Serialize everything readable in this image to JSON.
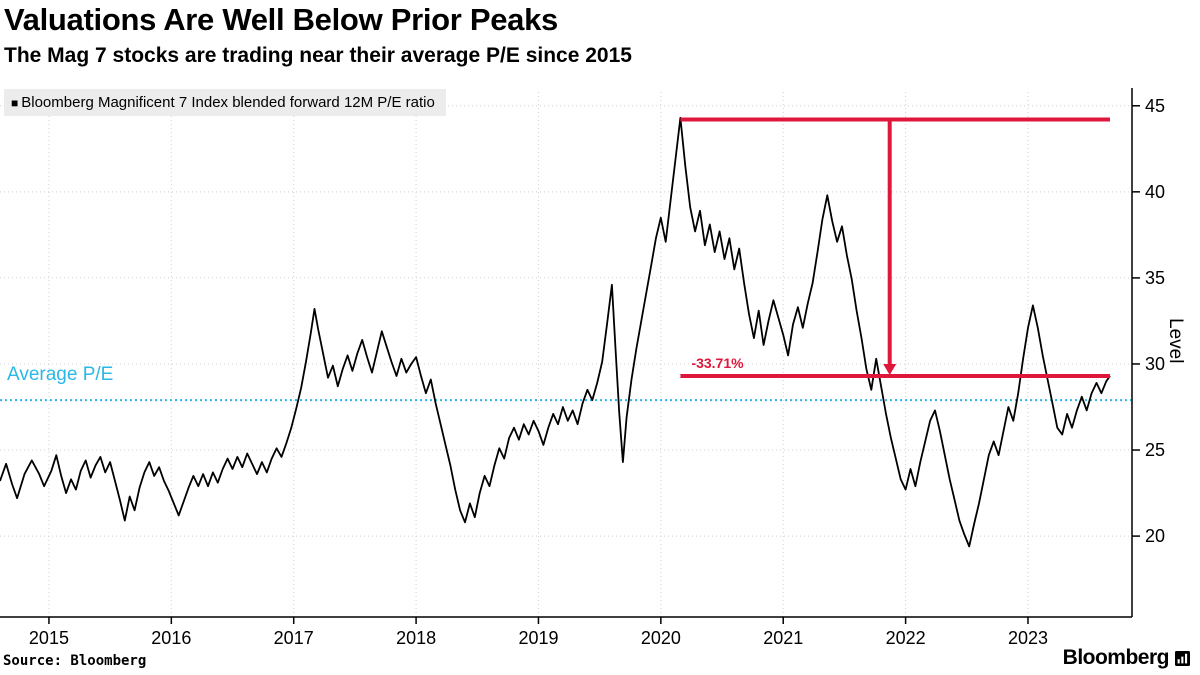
{
  "header": {
    "title": "Valuations Are Well Below Prior Peaks",
    "subtitle": "The Mag 7 stocks are trading near their average P/E since 2015"
  },
  "legend": {
    "swatch": "■",
    "label": "Bloomberg Magnificent 7 Index blended forward 12M P/E ratio"
  },
  "footer": {
    "source": "Source: Bloomberg",
    "brand": "Bloomberg"
  },
  "colors": {
    "series": "#000000",
    "average": "#2bb8e6",
    "annotation": "#e0173c",
    "grid": "#d0d0d0",
    "axis": "#000000",
    "legend_bg": "#ececec"
  },
  "chart_data": {
    "type": "line",
    "title": "Valuations Are Well Below Prior Peaks",
    "subtitle": "The Mag 7 stocks are trading near their average P/E since 2015",
    "xlabel": "",
    "ylabel": "Level",
    "xlim": [
      2014.6,
      2023.85
    ],
    "ylim": [
      15.3,
      45.8
    ],
    "yticks": [
      20,
      25,
      30,
      35,
      40,
      45
    ],
    "xticks": [
      2015,
      2016,
      2017,
      2018,
      2019,
      2020,
      2021,
      2022,
      2023
    ],
    "grid": true,
    "legend_position": "top-left",
    "average_line": {
      "label": "Average P/E",
      "value": 27.9
    },
    "annotations": {
      "peak_level": 44.2,
      "current_level": 29.3,
      "span_start_x": 2020.16,
      "span_end_x": 2023.67,
      "arrow_x": 2021.87,
      "label_x": 2020.25,
      "drop_label": "-33.71%"
    },
    "series": [
      {
        "name": "Bloomberg Magnificent 7 Index blended forward 12M P/E ratio",
        "points": [
          [
            2014.6,
            23.2
          ],
          [
            2014.65,
            24.2
          ],
          [
            2014.7,
            23.0
          ],
          [
            2014.74,
            22.2
          ],
          [
            2014.8,
            23.6
          ],
          [
            2014.86,
            24.4
          ],
          [
            2014.92,
            23.6
          ],
          [
            2014.96,
            22.9
          ],
          [
            2015.02,
            23.8
          ],
          [
            2015.06,
            24.7
          ],
          [
            2015.1,
            23.5
          ],
          [
            2015.14,
            22.5
          ],
          [
            2015.18,
            23.3
          ],
          [
            2015.22,
            22.7
          ],
          [
            2015.26,
            23.8
          ],
          [
            2015.3,
            24.4
          ],
          [
            2015.34,
            23.4
          ],
          [
            2015.38,
            24.1
          ],
          [
            2015.42,
            24.6
          ],
          [
            2015.46,
            23.7
          ],
          [
            2015.5,
            24.3
          ],
          [
            2015.54,
            23.2
          ],
          [
            2015.58,
            22.1
          ],
          [
            2015.62,
            20.9
          ],
          [
            2015.66,
            22.3
          ],
          [
            2015.7,
            21.5
          ],
          [
            2015.74,
            22.8
          ],
          [
            2015.78,
            23.7
          ],
          [
            2015.82,
            24.3
          ],
          [
            2015.86,
            23.5
          ],
          [
            2015.9,
            24.0
          ],
          [
            2015.94,
            23.2
          ],
          [
            2015.98,
            22.6
          ],
          [
            2016.02,
            21.9
          ],
          [
            2016.06,
            21.2
          ],
          [
            2016.1,
            22.0
          ],
          [
            2016.14,
            22.8
          ],
          [
            2016.18,
            23.5
          ],
          [
            2016.22,
            22.9
          ],
          [
            2016.26,
            23.6
          ],
          [
            2016.3,
            22.9
          ],
          [
            2016.34,
            23.7
          ],
          [
            2016.38,
            23.1
          ],
          [
            2016.42,
            23.9
          ],
          [
            2016.46,
            24.5
          ],
          [
            2016.5,
            23.9
          ],
          [
            2016.54,
            24.6
          ],
          [
            2016.58,
            24.0
          ],
          [
            2016.62,
            24.8
          ],
          [
            2016.66,
            24.2
          ],
          [
            2016.7,
            23.6
          ],
          [
            2016.74,
            24.3
          ],
          [
            2016.78,
            23.7
          ],
          [
            2016.82,
            24.5
          ],
          [
            2016.86,
            25.1
          ],
          [
            2016.9,
            24.6
          ],
          [
            2016.94,
            25.4
          ],
          [
            2016.98,
            26.3
          ],
          [
            2017.02,
            27.4
          ],
          [
            2017.06,
            28.6
          ],
          [
            2017.1,
            30.1
          ],
          [
            2017.14,
            31.8
          ],
          [
            2017.17,
            33.2
          ],
          [
            2017.2,
            32.0
          ],
          [
            2017.24,
            30.6
          ],
          [
            2017.28,
            29.2
          ],
          [
            2017.32,
            29.9
          ],
          [
            2017.36,
            28.7
          ],
          [
            2017.4,
            29.7
          ],
          [
            2017.44,
            30.5
          ],
          [
            2017.48,
            29.6
          ],
          [
            2017.52,
            30.6
          ],
          [
            2017.56,
            31.4
          ],
          [
            2017.6,
            30.4
          ],
          [
            2017.64,
            29.5
          ],
          [
            2017.68,
            30.7
          ],
          [
            2017.72,
            31.9
          ],
          [
            2017.76,
            31.0
          ],
          [
            2017.8,
            30.1
          ],
          [
            2017.84,
            29.3
          ],
          [
            2017.88,
            30.3
          ],
          [
            2017.92,
            29.5
          ],
          [
            2017.96,
            30.0
          ],
          [
            2018.0,
            30.4
          ],
          [
            2018.04,
            29.3
          ],
          [
            2018.08,
            28.3
          ],
          [
            2018.12,
            29.1
          ],
          [
            2018.16,
            27.7
          ],
          [
            2018.2,
            26.5
          ],
          [
            2018.24,
            25.3
          ],
          [
            2018.28,
            24.1
          ],
          [
            2018.32,
            22.7
          ],
          [
            2018.36,
            21.5
          ],
          [
            2018.4,
            20.8
          ],
          [
            2018.44,
            21.9
          ],
          [
            2018.48,
            21.1
          ],
          [
            2018.52,
            22.5
          ],
          [
            2018.56,
            23.5
          ],
          [
            2018.6,
            22.9
          ],
          [
            2018.64,
            24.1
          ],
          [
            2018.68,
            25.1
          ],
          [
            2018.72,
            24.5
          ],
          [
            2018.76,
            25.7
          ],
          [
            2018.8,
            26.3
          ],
          [
            2018.84,
            25.6
          ],
          [
            2018.88,
            26.5
          ],
          [
            2018.92,
            25.9
          ],
          [
            2018.96,
            26.7
          ],
          [
            2019.0,
            26.1
          ],
          [
            2019.04,
            25.3
          ],
          [
            2019.08,
            26.3
          ],
          [
            2019.12,
            27.1
          ],
          [
            2019.16,
            26.5
          ],
          [
            2019.2,
            27.5
          ],
          [
            2019.24,
            26.7
          ],
          [
            2019.28,
            27.3
          ],
          [
            2019.32,
            26.5
          ],
          [
            2019.36,
            27.7
          ],
          [
            2019.4,
            28.5
          ],
          [
            2019.44,
            27.9
          ],
          [
            2019.48,
            28.9
          ],
          [
            2019.52,
            30.1
          ],
          [
            2019.56,
            32.3
          ],
          [
            2019.6,
            34.6
          ],
          [
            2019.63,
            30.8
          ],
          [
            2019.66,
            27.2
          ],
          [
            2019.69,
            24.3
          ],
          [
            2019.72,
            26.9
          ],
          [
            2019.76,
            29.1
          ],
          [
            2019.8,
            30.9
          ],
          [
            2019.84,
            32.5
          ],
          [
            2019.88,
            34.1
          ],
          [
            2019.92,
            35.7
          ],
          [
            2019.96,
            37.3
          ],
          [
            2020.0,
            38.5
          ],
          [
            2020.04,
            37.1
          ],
          [
            2020.08,
            39.5
          ],
          [
            2020.12,
            41.9
          ],
          [
            2020.16,
            44.3
          ],
          [
            2020.2,
            41.5
          ],
          [
            2020.24,
            39.1
          ],
          [
            2020.28,
            37.7
          ],
          [
            2020.32,
            38.9
          ],
          [
            2020.36,
            36.9
          ],
          [
            2020.4,
            38.1
          ],
          [
            2020.44,
            36.5
          ],
          [
            2020.48,
            37.7
          ],
          [
            2020.52,
            36.1
          ],
          [
            2020.56,
            37.3
          ],
          [
            2020.6,
            35.5
          ],
          [
            2020.64,
            36.7
          ],
          [
            2020.68,
            34.7
          ],
          [
            2020.72,
            32.9
          ],
          [
            2020.76,
            31.5
          ],
          [
            2020.8,
            33.1
          ],
          [
            2020.84,
            31.1
          ],
          [
            2020.88,
            32.5
          ],
          [
            2020.92,
            33.7
          ],
          [
            2020.96,
            32.7
          ],
          [
            2021.0,
            31.7
          ],
          [
            2021.04,
            30.5
          ],
          [
            2021.08,
            32.3
          ],
          [
            2021.12,
            33.3
          ],
          [
            2021.16,
            32.1
          ],
          [
            2021.2,
            33.5
          ],
          [
            2021.24,
            34.7
          ],
          [
            2021.28,
            36.5
          ],
          [
            2021.32,
            38.4
          ],
          [
            2021.36,
            39.8
          ],
          [
            2021.4,
            38.3
          ],
          [
            2021.44,
            37.1
          ],
          [
            2021.48,
            38.0
          ],
          [
            2021.52,
            36.3
          ],
          [
            2021.56,
            34.9
          ],
          [
            2021.6,
            33.1
          ],
          [
            2021.64,
            31.5
          ],
          [
            2021.68,
            29.7
          ],
          [
            2021.72,
            28.5
          ],
          [
            2021.76,
            30.3
          ],
          [
            2021.8,
            28.7
          ],
          [
            2021.84,
            27.1
          ],
          [
            2021.88,
            25.7
          ],
          [
            2021.92,
            24.5
          ],
          [
            2021.96,
            23.3
          ],
          [
            2022.0,
            22.7
          ],
          [
            2022.04,
            23.9
          ],
          [
            2022.08,
            22.9
          ],
          [
            2022.12,
            24.3
          ],
          [
            2022.16,
            25.5
          ],
          [
            2022.2,
            26.7
          ],
          [
            2022.24,
            27.3
          ],
          [
            2022.28,
            26.1
          ],
          [
            2022.32,
            24.7
          ],
          [
            2022.36,
            23.3
          ],
          [
            2022.4,
            22.1
          ],
          [
            2022.44,
            20.9
          ],
          [
            2022.48,
            20.1
          ],
          [
            2022.52,
            19.4
          ],
          [
            2022.56,
            20.7
          ],
          [
            2022.6,
            21.9
          ],
          [
            2022.64,
            23.3
          ],
          [
            2022.68,
            24.7
          ],
          [
            2022.72,
            25.5
          ],
          [
            2022.76,
            24.7
          ],
          [
            2022.8,
            26.1
          ],
          [
            2022.84,
            27.5
          ],
          [
            2022.88,
            26.7
          ],
          [
            2022.92,
            28.3
          ],
          [
            2022.96,
            30.3
          ],
          [
            2023.0,
            32.1
          ],
          [
            2023.04,
            33.4
          ],
          [
            2023.08,
            32.1
          ],
          [
            2023.12,
            30.5
          ],
          [
            2023.16,
            29.1
          ],
          [
            2023.2,
            27.7
          ],
          [
            2023.24,
            26.3
          ],
          [
            2023.28,
            25.9
          ],
          [
            2023.32,
            27.1
          ],
          [
            2023.36,
            26.3
          ],
          [
            2023.4,
            27.3
          ],
          [
            2023.44,
            28.1
          ],
          [
            2023.48,
            27.3
          ],
          [
            2023.52,
            28.3
          ],
          [
            2023.56,
            28.9
          ],
          [
            2023.6,
            28.3
          ],
          [
            2023.64,
            29.0
          ],
          [
            2023.67,
            29.3
          ]
        ]
      }
    ]
  }
}
